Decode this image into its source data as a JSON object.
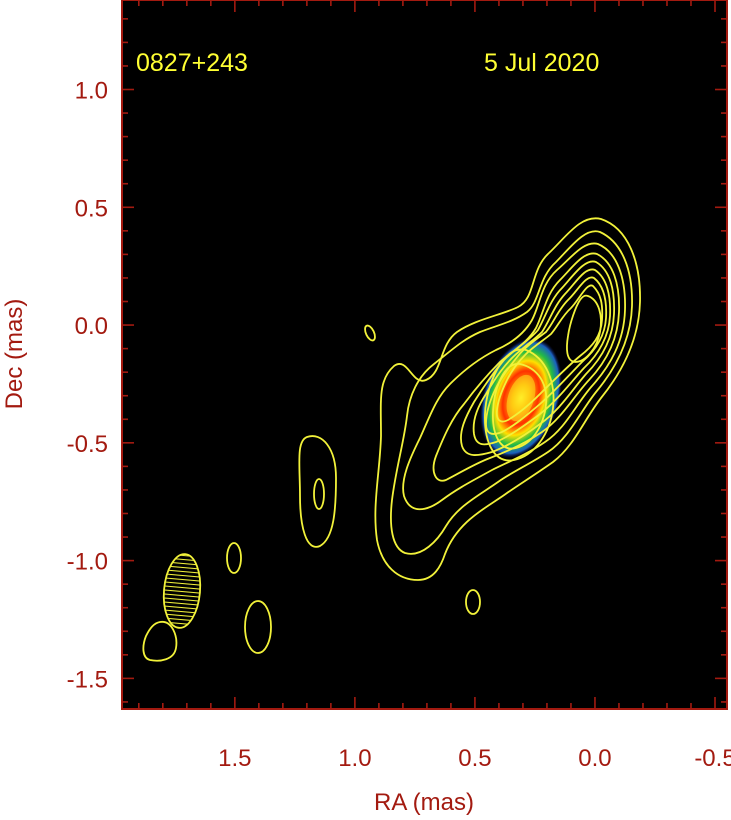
{
  "chart_data": {
    "type": "contour",
    "title": "",
    "source_label": "0827+243",
    "date_label": "5 Jul 2020",
    "xlabel": "RA (mas)",
    "ylabel": "Dec (mas)",
    "xlim": [
      1.97,
      -0.55
    ],
    "ylim": [
      -1.63,
      1.38
    ],
    "x_ticks": [
      1.5,
      1.0,
      0.5,
      0.0,
      -0.5
    ],
    "x_tick_labels": [
      "1.5",
      "1.0",
      "0.5",
      "0.0",
      "-0.5"
    ],
    "y_ticks": [
      1.0,
      0.5,
      0.0,
      -0.5,
      -1.0,
      -1.5
    ],
    "y_tick_labels": [
      "1.0",
      "0.5",
      "0.0",
      "-0.5",
      "-1.0",
      "-1.5"
    ],
    "colors": {
      "background": "#000000",
      "frame": "#a31a10",
      "labels": "#a31a10",
      "contours": "#f2f23a",
      "annotations": "#ffff33"
    },
    "core": {
      "ra": 0.28,
      "dec": -0.32
    },
    "beam": {
      "ra": 1.71,
      "dec": -1.1,
      "major_mas": 0.31,
      "minor_mas": 0.15,
      "pa_deg": 5
    },
    "contour_levels": 9
  }
}
